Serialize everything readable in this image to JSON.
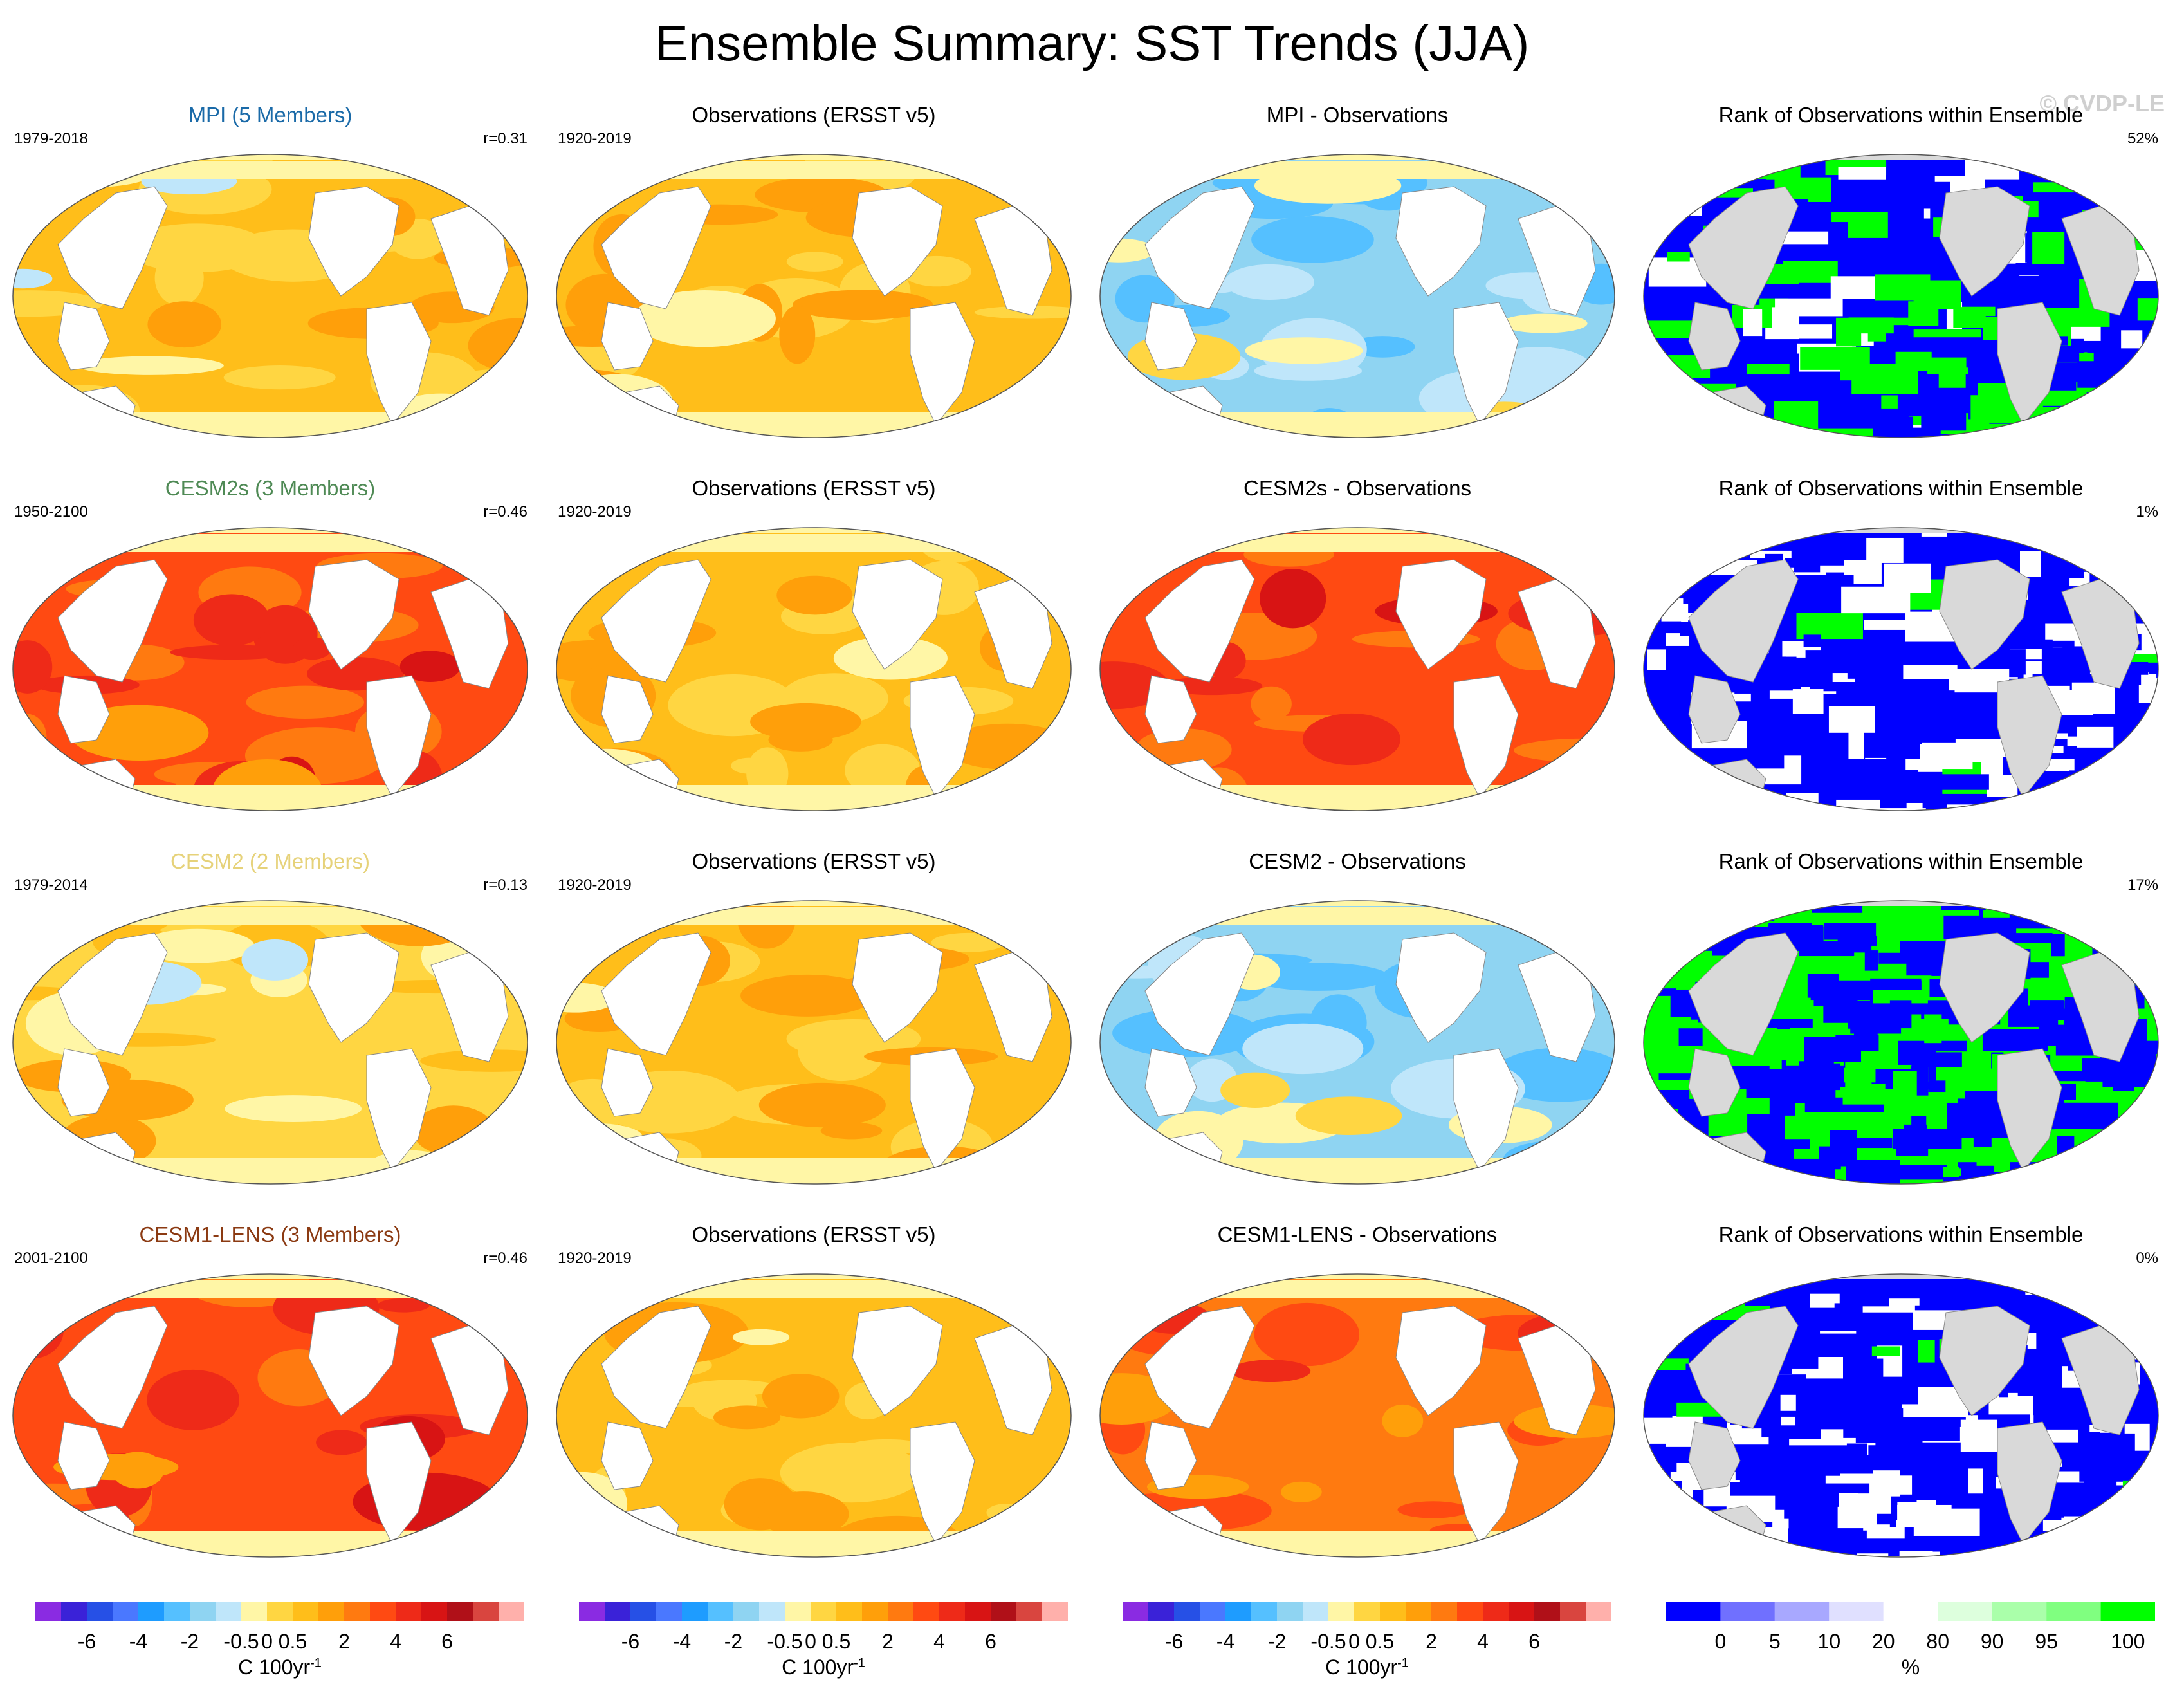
{
  "title": "Ensemble Summary: SST Trends (JJA)",
  "watermark": "© CVDP-LE",
  "colors": {
    "land": "#ffffff",
    "rank_land": "#d9d9d9",
    "trend_scale": [
      "#8a2be2",
      "#3a22d8",
      "#2650e6",
      "#4a78ff",
      "#1e9cff",
      "#55c0ff",
      "#8fd4f2",
      "#bfe6fa",
      "#fff6a6",
      "#ffd642",
      "#ffbe1a",
      "#ff9f0a",
      "#ff7a10",
      "#ff4a12",
      "#ee2a18",
      "#d81414",
      "#b01018",
      "#d9453f",
      "#ffb0ab"
    ],
    "rank_scale": [
      "#0000ff",
      "#7070ff",
      "#a8a8ff",
      "#e0e0ff",
      "#ffffff",
      "#ddffdd",
      "#aaffaa",
      "#80ff80",
      "#00ff00"
    ]
  },
  "rows": [
    {
      "model": {
        "title": "MPI (5 Members)",
        "title_color": "#1a6aa8",
        "period": "1979-2018",
        "r": "r=0.31",
        "scheme": "warm"
      },
      "obs": {
        "title": "Observations (ERSST v5)",
        "period": "1920-2019",
        "scheme": "obs"
      },
      "diff": {
        "title": "MPI - Observations",
        "scheme": "cool"
      },
      "rank": {
        "title": "Rank of Observations within Ensemble",
        "pct": "52%",
        "scheme": "mixed"
      }
    },
    {
      "model": {
        "title": "CESM2s (3 Members)",
        "title_color": "#4f8a55",
        "period": "1950-2100",
        "r": "r=0.46",
        "scheme": "hot"
      },
      "obs": {
        "title": "Observations (ERSST v5)",
        "period": "1920-2019",
        "scheme": "obs"
      },
      "diff": {
        "title": "CESM2s - Observations",
        "scheme": "hot"
      },
      "rank": {
        "title": "Rank of Observations within Ensemble",
        "pct": "1%",
        "scheme": "blue"
      }
    },
    {
      "model": {
        "title": "CESM2 (2 Members)",
        "title_color": "#e6d27a",
        "period": "1979-2014",
        "r": "r=0.13",
        "scheme": "mild"
      },
      "obs": {
        "title": "Observations (ERSST v5)",
        "period": "1920-2019",
        "scheme": "obs"
      },
      "diff": {
        "title": "CESM2 - Observations",
        "scheme": "cool"
      },
      "rank": {
        "title": "Rank of Observations within Ensemble",
        "pct": "17%",
        "scheme": "greenblue"
      }
    },
    {
      "model": {
        "title": "CESM1-LENS (3 Members)",
        "title_color": "#8b3a12",
        "period": "2001-2100",
        "r": "r=0.46",
        "scheme": "hot"
      },
      "obs": {
        "title": "Observations (ERSST v5)",
        "period": "1920-2019",
        "scheme": "obs"
      },
      "diff": {
        "title": "CESM1-LENS - Observations",
        "scheme": "warmhot"
      },
      "rank": {
        "title": "Rank of Observations within Ensemble",
        "pct": "0%",
        "scheme": "blue"
      }
    }
  ],
  "colorbars": [
    {
      "ticks": [
        "-6",
        "-4",
        "-2",
        "-0.5",
        "0",
        "0.5",
        "2",
        "4",
        "6"
      ],
      "unit": "C 100yr",
      "unit_sup": "-1"
    },
    {
      "ticks": [
        "-6",
        "-4",
        "-2",
        "-0.5",
        "0",
        "0.5",
        "2",
        "4",
        "6"
      ],
      "unit": "C 100yr",
      "unit_sup": "-1"
    },
    {
      "ticks": [
        "-6",
        "-4",
        "-2",
        "-0.5",
        "0",
        "0.5",
        "2",
        "4",
        "6"
      ],
      "unit": "C 100yr",
      "unit_sup": "-1"
    },
    {
      "ticks": [
        "0",
        "5",
        "10",
        "20",
        "80",
        "90",
        "95",
        "100"
      ],
      "unit": "%",
      "unit_sup": ""
    }
  ],
  "chart_data": {
    "type": "heatmap",
    "title": "Ensemble Summary: SST Trends (JJA)",
    "trend_levels": [
      -6,
      -4,
      -2,
      -0.5,
      0,
      0.5,
      2,
      4,
      6
    ],
    "trend_unit": "C 100yr-1",
    "rank_levels": [
      0,
      5,
      10,
      20,
      80,
      90,
      95,
      100
    ],
    "rank_unit": "%",
    "panels": [
      {
        "row": 1,
        "col": 1,
        "title": "MPI (5 Members)",
        "period": "1979-2018",
        "pattern_correlation": 0.31
      },
      {
        "row": 1,
        "col": 2,
        "title": "Observations (ERSST v5)",
        "period": "1920-2019"
      },
      {
        "row": 1,
        "col": 3,
        "title": "MPI - Observations"
      },
      {
        "row": 1,
        "col": 4,
        "title": "Rank of Observations within Ensemble",
        "percent": 52
      },
      {
        "row": 2,
        "col": 1,
        "title": "CESM2s (3 Members)",
        "period": "1950-2100",
        "pattern_correlation": 0.46
      },
      {
        "row": 2,
        "col": 2,
        "title": "Observations (ERSST v5)",
        "period": "1920-2019"
      },
      {
        "row": 2,
        "col": 3,
        "title": "CESM2s - Observations"
      },
      {
        "row": 2,
        "col": 4,
        "title": "Rank of Observations within Ensemble",
        "percent": 1
      },
      {
        "row": 3,
        "col": 1,
        "title": "CESM2 (2 Members)",
        "period": "1979-2014",
        "pattern_correlation": 0.13
      },
      {
        "row": 3,
        "col": 2,
        "title": "Observations (ERSST v5)",
        "period": "1920-2019"
      },
      {
        "row": 3,
        "col": 3,
        "title": "CESM2 - Observations"
      },
      {
        "row": 3,
        "col": 4,
        "title": "Rank of Observations within Ensemble",
        "percent": 17
      },
      {
        "row": 4,
        "col": 1,
        "title": "CESM1-LENS (3 Members)",
        "period": "2001-2100",
        "pattern_correlation": 0.46
      },
      {
        "row": 4,
        "col": 2,
        "title": "Observations (ERSST v5)",
        "period": "1920-2019"
      },
      {
        "row": 4,
        "col": 3,
        "title": "CESM1-LENS - Observations"
      },
      {
        "row": 4,
        "col": 4,
        "title": "Rank of Observations within Ensemble",
        "percent": 0
      }
    ]
  }
}
